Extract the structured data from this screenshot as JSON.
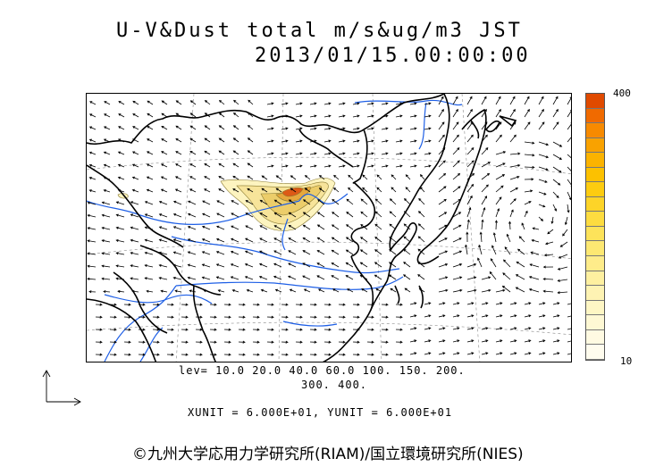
{
  "header": {
    "title": "U-V&Dust total m/s&ug/m3 JST",
    "datetime": "2013/01/15.00:00:00"
  },
  "colorbar": {
    "max_label": "400",
    "min_label": "10",
    "colors": [
      "#e04a00",
      "#f06a00",
      "#f78a00",
      "#f9a200",
      "#fbb300",
      "#fcc100",
      "#fdcc10",
      "#fdd428",
      "#fddc40",
      "#fde35a",
      "#fde872",
      "#feec8a",
      "#fef0a0",
      "#fef3b3",
      "#fef6c4",
      "#fef8d4",
      "#fffae2",
      "#fffcee"
    ]
  },
  "levels": {
    "line1": "lev= 10.0 20.0 40.0 60.0 100. 150. 200.",
    "line2": "300. 400."
  },
  "units": {
    "text": "XUNIT = 6.000E+01, YUNIT = 6.000E+01"
  },
  "credit": {
    "text": "©九州大学応用力学研究所(RIAM)/国立環境研究所(NIES)"
  },
  "map": {
    "coastline_color": "#000000",
    "river_color": "#1e5fe6",
    "grid_color": "#888888",
    "dust_colors": [
      "#fdf4c0",
      "#f7e49a",
      "#eccd6a",
      "#e6a73c",
      "#dd5a16"
    ]
  }
}
